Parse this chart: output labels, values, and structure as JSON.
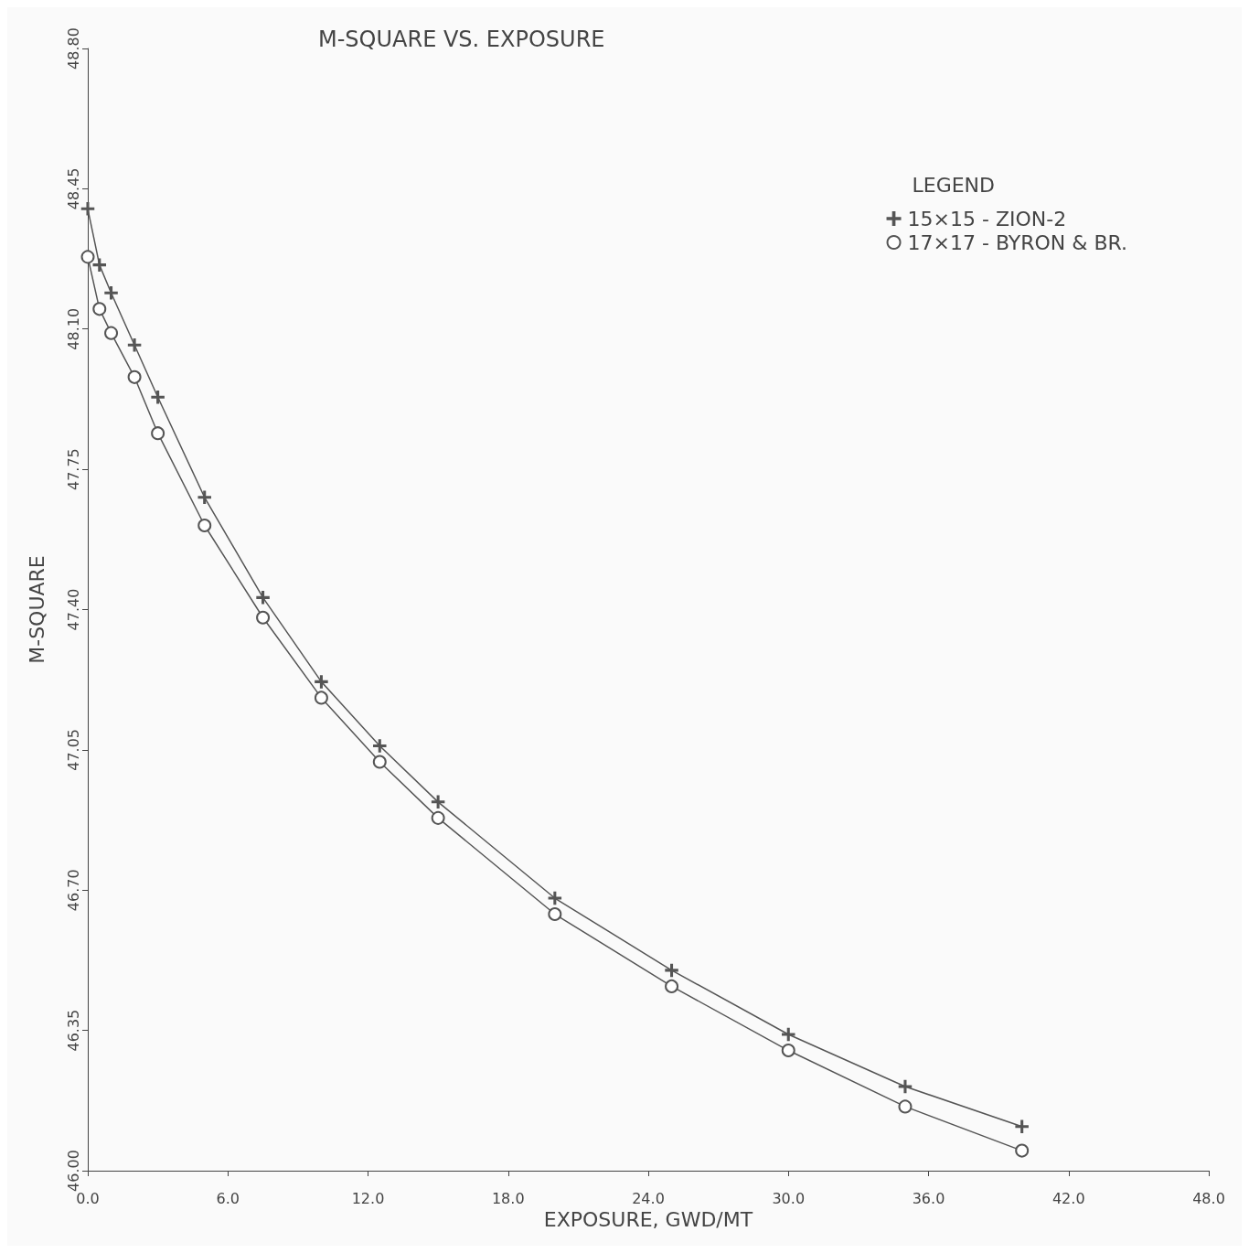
{
  "chart_data": {
    "type": "line",
    "title": "M-SQUARE VS. EXPOSURE",
    "xlabel": "EXPOSURE, GWD/MT",
    "ylabel": "M-SQUARE",
    "legend_title": "LEGEND",
    "legend": "top right",
    "grid": false,
    "line_style": "solid",
    "x": [
      0,
      0.5,
      1,
      2,
      3,
      5,
      7.5,
      10,
      12.5,
      15,
      20,
      25,
      30,
      35,
      40
    ],
    "xlim": [
      0,
      48
    ],
    "xticks": [
      {
        "value": 0,
        "label": "0.0"
      },
      {
        "value": 6,
        "label": "6.0"
      },
      {
        "value": 12,
        "label": "12.0"
      },
      {
        "value": 18,
        "label": "18.0"
      },
      {
        "value": 24,
        "label": "24.0"
      },
      {
        "value": 30,
        "label": "30.0"
      },
      {
        "value": 36,
        "label": "36.0"
      },
      {
        "value": 42,
        "label": "42.0"
      },
      {
        "value": 48,
        "label": "48.0"
      }
    ],
    "ylim": [
      46,
      48.8
    ],
    "yticks": [
      {
        "value": 46,
        "label": "46.00"
      },
      46.35,
      {
        "value": 46.7,
        "label": "46.70"
      },
      47.05,
      {
        "value": 47.4,
        "label": "47.40"
      },
      47.75,
      {
        "value": 48.1,
        "label": "48.10"
      },
      48.45,
      {
        "value": 48.8,
        "label": "48.80"
      }
    ],
    "series": [
      {
        "name": "15×15 - ZION-2",
        "color": "#555555",
        "marker": "cross",
        "values": [
          48.4,
          48.26,
          48.19,
          48.06,
          47.93,
          47.68,
          47.43,
          47.22,
          47.06,
          46.92,
          46.68,
          46.5,
          46.34,
          46.21,
          46.11
        ]
      },
      {
        "name": "17×17 - BYRON & BR.",
        "color": "#555555",
        "marker": "circle",
        "values": [
          48.28,
          48.15,
          48.09,
          47.98,
          47.84,
          47.61,
          47.38,
          47.18,
          47.02,
          46.88,
          46.64,
          46.46,
          46.3,
          46.16,
          46.05
        ]
      }
    ]
  }
}
